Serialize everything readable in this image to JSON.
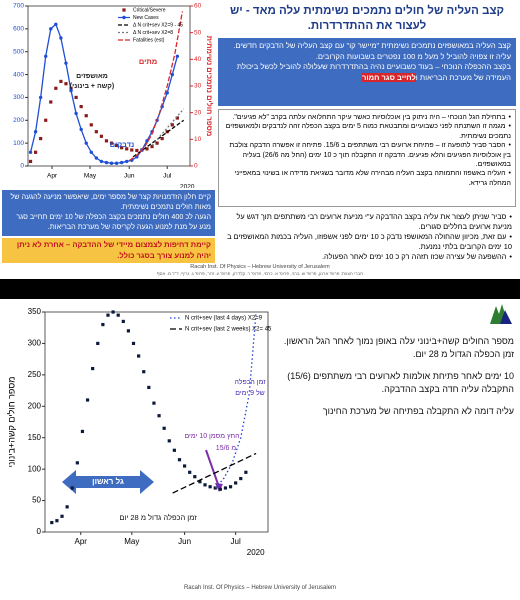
{
  "chart_data": [
    {
      "type": "line",
      "xlim": [
        12,
        140
      ],
      "xticks": [
        {
          "value": 31,
          "label": "Apr"
        },
        {
          "value": 61,
          "label": "May"
        },
        {
          "value": 92,
          "label": "Jun"
        },
        {
          "value": 122,
          "label": "Jul"
        }
      ],
      "year_label": "2020",
      "ylim": [
        0,
        700
      ],
      "yticks": [
        0,
        100,
        200,
        300,
        400,
        500,
        600,
        700
      ],
      "ycolor": "#1f4fd6",
      "y2lim": [
        0,
        60
      ],
      "y2ticks": [
        0,
        10,
        20,
        30,
        40,
        50,
        60
      ],
      "y2color": "#d9262b",
      "y2label": "מספר חולים נתמכים נשימתית",
      "grid": false,
      "series": [
        {
          "name": "Critical/Severe",
          "color": "#8b1a1a",
          "marker": "square",
          "line": false,
          "x": [
            14,
            18,
            22,
            26,
            30,
            34,
            38,
            42,
            46,
            50,
            54,
            58,
            62,
            66,
            70,
            74,
            78,
            82,
            86,
            90,
            94,
            98,
            102,
            106,
            110,
            114,
            118,
            122,
            126,
            130
          ],
          "values": [
            20,
            60,
            120,
            200,
            280,
            340,
            370,
            360,
            340,
            300,
            260,
            220,
            180,
            150,
            130,
            110,
            100,
            90,
            80,
            75,
            70,
            68,
            70,
            75,
            85,
            100,
            120,
            150,
            180,
            210
          ]
        },
        {
          "name": "New Cases",
          "color": "#1f4fd6",
          "marker": "circle",
          "line": true,
          "x": [
            14,
            18,
            22,
            26,
            30,
            34,
            38,
            42,
            46,
            50,
            54,
            58,
            62,
            66,
            70,
            74,
            78,
            82,
            86,
            90,
            94,
            98,
            102,
            106,
            110,
            114,
            118,
            122,
            126,
            130
          ],
          "values": [
            60,
            150,
            300,
            480,
            600,
            620,
            560,
            450,
            330,
            230,
            160,
            100,
            60,
            35,
            20,
            15,
            12,
            12,
            15,
            20,
            25,
            40,
            70,
            110,
            150,
            200,
            260,
            320,
            400,
            480
          ]
        },
        {
          "name": "Δ N crit+sev X2=9 - 45",
          "color": "#000000",
          "marker": null,
          "line": true,
          "dash": "4 2",
          "x": [
            95,
            135
          ],
          "values": [
            40,
            200
          ]
        },
        {
          "name": "Δ N crit+sev X2=8",
          "color": "#777777",
          "marker": null,
          "line": true,
          "dash": "2 2",
          "x": [
            110,
            135
          ],
          "values": [
            90,
            250
          ]
        },
        {
          "name": "Fatalities (est)",
          "color": "#d9262b",
          "marker": null,
          "line": true,
          "dash": "5 2",
          "axis": "y2",
          "x": [
            92,
            98,
            104,
            110,
            116,
            122,
            128,
            134
          ],
          "values": [
            2,
            4,
            7,
            12,
            20,
            30,
            42,
            58
          ]
        }
      ],
      "annotations": [
        "מאושפזים",
        "(קשה + בינוני)",
        "מתים",
        "נדבקים"
      ]
    },
    {
      "type": "line",
      "xlim": [
        10,
        141
      ],
      "xticks": [
        {
          "value": 31,
          "label": "Apr"
        },
        {
          "value": 61,
          "label": "May"
        },
        {
          "value": 92,
          "label": "Jun"
        },
        {
          "value": 122,
          "label": "Jul"
        }
      ],
      "year_label": "2020",
      "ylim": [
        0,
        350
      ],
      "yticks": [
        0,
        50,
        100,
        150,
        200,
        250,
        300,
        350
      ],
      "ycolor": "#000000",
      "ylabel": "מספר חולים קשה+בינוני",
      "grid": false,
      "series": [
        {
          "color": "#0b1a3a",
          "marker": "square",
          "line": false,
          "x": [
            14,
            17,
            20,
            23,
            26,
            29,
            32,
            35,
            38,
            41,
            44,
            47,
            50,
            53,
            56,
            59,
            62,
            65,
            68,
            71,
            74,
            77,
            80,
            83,
            86,
            89,
            92,
            95,
            98,
            101,
            104,
            107,
            110,
            113,
            116,
            119,
            122,
            125,
            128
          ],
          "values": [
            15,
            18,
            25,
            40,
            70,
            110,
            160,
            210,
            260,
            300,
            330,
            345,
            350,
            345,
            335,
            320,
            300,
            280,
            255,
            230,
            205,
            185,
            165,
            145,
            130,
            115,
            105,
            95,
            88,
            80,
            75,
            72,
            70,
            68,
            70,
            72,
            78,
            85,
            95
          ]
        },
        {
          "name": "N crit+sev (last 4 days) X2=9",
          "color": "#1f3fd6",
          "marker": null,
          "line": true,
          "dash": "1.5 2.5",
          "x": [
            110,
            115,
            120,
            125,
            130,
            134
          ],
          "values": [
            70,
            85,
            110,
            150,
            220,
            350
          ]
        },
        {
          "name": "N crit+sev (last 2 weeks) X2= 45",
          "color": "#000000",
          "marker": null,
          "line": true,
          "dash": "6 3",
          "x": [
            85,
            134
          ],
          "values": [
            62,
            125
          ]
        }
      ],
      "annotations": [
        "גל ראשון",
        "זמן הכפלה גדול מ 28 יום",
        "החץ מסמן 10 ימים",
        "מ 15/6",
        "זמן הכפלה",
        "של 9 ימים"
      ]
    }
  ],
  "slide1": {
    "title": "קצב העליה של חולים נתמכים נשימתית עלה מאד - יש לעצור את ההתדרדרות.",
    "summary": [
      "קצב העליה במאושפזים נתמכים נשימתית \"מיישר קו\" עם קצב העליה של הדבקים חדשים.",
      "עליה זו צפויה להוביל ל מעל מ 100 נפטרים בשבועות הקרובים.",
      "בקצב ההכפלה הנוכחי – בעוד כשבועיים נהיה בהתדרדרות שעלולה להוביל לכשל ביכולת העמידה של מערכת הבריאות ו"
    ],
    "summary_highlight": "לחייב סגר חמור",
    "bullets_a": [
      "בתחילת הגל הנוכחי – היה ניתוק בין אוכלוסיות כאשר עיקר התחלואה עלתה בקרב \"לא פגיעים\".",
      "מגמה זו השתנתה לפני כשבועיים ומתבטאת כמוה 5 ימים בקצב הכפלה זהה לנדבקים ולמאושפזים נתמכים נשימתית.",
      "הסבר סביר לתופעה זו – פתיחת ארועים רבי משתתפים ב 15/6. פתיחה זו אפשרה הדבקה צולבת בין אוכלוסיות הפגיעים והלא פגיעים. הדבקה זו התקבלה תוך כ 10 ימים (החל מה 26/6) בעליה במאושפזים.",
      "העליה באשפוז והתמותה בקצב העליה מבהירה שלא מדובר בשגיאת מדידה או בשינוי במאפייני המחלה גרידא."
    ],
    "bullets_b": [
      "סביר שניתן לעצור את עליה בקצב ההדבקה ע\"י מניעת ארועים רבי משתתפים תוך דגש על מניעת ארועים בחללים סגורים.",
      "עם זאת, מכיוון שהחולה המאושפז נדבק כ 10 ימים לפני אשפוזו, העליה בכמות המאושפזים ב 10 ימים הקרובים בלתי נמנעת.",
      "ההשפעה של עצירה שכזו תזהה רק כ 10 ימים לאחר הפעולה."
    ],
    "window_box": [
      "קיים חלון הזדמנויות קצר של מספר ימים, שיאפשר מניעה להגעה של מאות חולים נתמכים נשימתית.",
      "הגעה לכ 400 חולים נתמכים בקצב הכפלה של 10 ימים תחייב סגר מנע על מנת למנוע הגעה לקריסה של מערכת הבריאות."
    ],
    "urgent_box": "קיימת דחיפות לצמצום מיידי של ההדבקה – אחרת לא ניתן יהיה למנוע צורך בסגר כולל.",
    "footer": "Racah Inst. Of Physics – Hebrew University of Jerusalem",
    "credits": "חברי הצוות: פרופ' ארנון, פרופ' ש. ברגי, פרופ' א. כרמי, פרופ' ר. קלדרון, פרופ' ע. זהר, פרופ' ג. גריף, ד\"ר מ. אסף"
  },
  "slide2": {
    "notes": [
      "מספר החולים קשה+בינוני עלה באופן נמוך לאחר הגל הראשון. זמן הכפלה הגדול מ 28 יום.",
      "10 ימים לאחר פתיחת אולמות לארועים רבי משתתפים (15/6) התקבלה עליה חדה בקצב ההדבקה.",
      "עליה דומה לא התקבלה בפתיחה של מערכת החינוך"
    ],
    "footer": "Racah Inst. Of Physics – Hebrew University of Jerusalem"
  }
}
